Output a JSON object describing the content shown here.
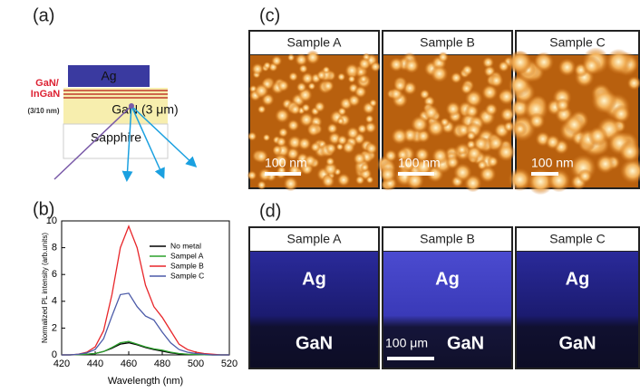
{
  "panel_labels": [
    "(a)",
    "(b)",
    "(c)",
    "(d)"
  ],
  "diagram": {
    "layer_label_1": "GaN/",
    "layer_label_2": "InGaN",
    "layer_thickness": "(3/10 nm)",
    "metal": "Ag",
    "buffer": "GaN (3 μm)",
    "substrate": "Sapphire"
  },
  "chart_data": {
    "type": "line",
    "x_label": "Wavelength (nm)",
    "y_label": "Normalized PL intensity (arb.units)",
    "x": [
      420,
      425,
      430,
      435,
      440,
      445,
      450,
      455,
      460,
      465,
      470,
      475,
      480,
      485,
      490,
      495,
      500,
      505,
      510,
      515,
      520
    ],
    "xlim": [
      420,
      520
    ],
    "xticks": [
      420,
      440,
      460,
      480,
      500,
      520
    ],
    "ylim": [
      0,
      10
    ],
    "yticks": [
      0,
      2,
      4,
      6,
      8,
      10
    ],
    "legend": "upper right",
    "series": [
      {
        "name": "No metal",
        "color": "#000000",
        "values": [
          0,
          0,
          0.02,
          0.05,
          0.1,
          0.25,
          0.5,
          0.8,
          0.9,
          0.75,
          0.55,
          0.4,
          0.28,
          0.15,
          0.08,
          0.04,
          0.02,
          0.01,
          0,
          0,
          0
        ]
      },
      {
        "name": "Sampel A",
        "color": "#2ca02c",
        "values": [
          0,
          0,
          0.02,
          0.05,
          0.1,
          0.25,
          0.55,
          0.9,
          1.0,
          0.8,
          0.6,
          0.45,
          0.35,
          0.2,
          0.1,
          0.05,
          0.03,
          0.01,
          0,
          0,
          0
        ]
      },
      {
        "name": "Sample B",
        "color": "#e8262a",
        "values": [
          0,
          0,
          0.05,
          0.2,
          0.6,
          1.8,
          4.5,
          8.0,
          9.6,
          8.0,
          5.2,
          3.6,
          2.8,
          1.8,
          0.8,
          0.4,
          0.2,
          0.1,
          0.05,
          0,
          0
        ]
      },
      {
        "name": "Sample C",
        "color": "#4b5aa8",
        "values": [
          0,
          0,
          0.05,
          0.15,
          0.4,
          1.2,
          2.9,
          4.5,
          4.6,
          3.6,
          2.9,
          2.6,
          1.7,
          0.9,
          0.4,
          0.2,
          0.1,
          0.05,
          0,
          0,
          0
        ]
      }
    ]
  },
  "afm": {
    "samples": [
      "Sample A",
      "Sample B",
      "Sample C"
    ],
    "scale_bar": "100 nm"
  },
  "optical": {
    "samples": [
      "Sample A",
      "Sample B",
      "Sample C"
    ],
    "top_label": "Ag",
    "bottom_label": "GaN",
    "scale_bar": "100 μm"
  }
}
